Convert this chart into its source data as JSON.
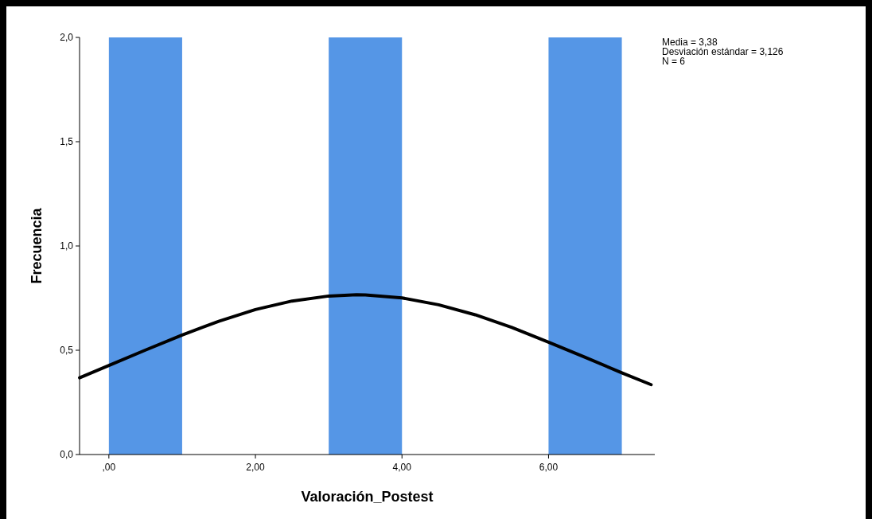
{
  "chart_data": {
    "type": "histogram",
    "xlabel": "Valoración_Postest",
    "ylabel": "Frecuencia",
    "bins": [
      0,
      1,
      2,
      3,
      4,
      5,
      6,
      7
    ],
    "values": [
      2,
      0,
      0,
      2,
      0,
      0,
      2
    ],
    "color": "#5596e6",
    "series": [
      {
        "type": "line",
        "color": "#000000",
        "x": [
          -0.4,
          0,
          0.5,
          1,
          1.5,
          2,
          2.5,
          3,
          3.38,
          3.5,
          4,
          4.5,
          5,
          5.5,
          6,
          6.5,
          7,
          7.4
        ],
        "values": [
          0.368,
          0.427,
          0.501,
          0.573,
          0.639,
          0.695,
          0.736,
          0.76,
          0.766,
          0.765,
          0.751,
          0.718,
          0.67,
          0.609,
          0.539,
          0.466,
          0.392,
          0.335
        ]
      }
    ],
    "xlim": [
      -0.4,
      7.45
    ],
    "ylim": [
      0,
      2
    ],
    "xticks": [
      {
        "value": 0,
        "label": ",00"
      },
      {
        "value": 2,
        "label": "2,00"
      },
      {
        "value": 4,
        "label": "4,00"
      },
      {
        "value": 6,
        "label": "6,00"
      }
    ],
    "yticks": [
      {
        "value": 0,
        "label": "0,0"
      },
      {
        "value": 0.5,
        "label": "0,5"
      },
      {
        "value": 1,
        "label": "1,0"
      },
      {
        "value": 1.5,
        "label": "1,5"
      },
      {
        "value": 2,
        "label": "2,0"
      }
    ],
    "grid": false,
    "annotations": [
      "Media = 3,38",
      "Desviación estándar = 3,126",
      "N = 6"
    ]
  }
}
